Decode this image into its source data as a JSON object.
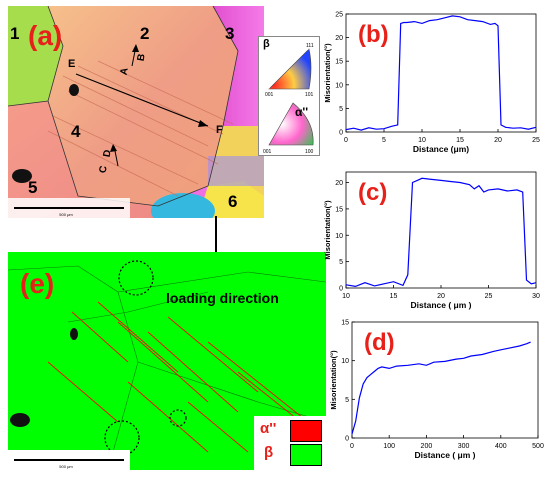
{
  "panels": {
    "a": {
      "label": "(a)",
      "grain_numbers": [
        "1",
        "2",
        "3",
        "4",
        "5",
        "6"
      ],
      "line_labels": {
        "E": "E",
        "F": "F",
        "A": "A",
        "B": "B",
        "C": "C",
        "D": "D"
      },
      "legend_beta": "β",
      "legend_alpha": "α''",
      "ipf_beta_ticks": [
        "001",
        "101",
        "111"
      ],
      "ipf_alpha_ticks": [
        "001",
        "100"
      ],
      "scalebar_label": "500 μm"
    },
    "e": {
      "label": "(e)",
      "annotation": "loading direction",
      "legend": [
        {
          "symbol": "α''",
          "color": "#ff0000"
        },
        {
          "symbol": "β",
          "color": "#00ff00"
        }
      ],
      "scalebar_label": "500 μm"
    }
  },
  "colors": {
    "beta_phase": "#00ff00",
    "alpha_phase": "#ff0000",
    "plot_line": "#0000ff",
    "panel_label": "#e8201a"
  },
  "chart_data": [
    {
      "id": "b",
      "label": "(b)",
      "type": "line",
      "xlabel": "Distance",
      "xunit": "(μm)",
      "ylabel": "Misorientation(°)",
      "xlim": [
        0,
        25
      ],
      "ylim": [
        0,
        25
      ],
      "xticks": [
        "0",
        "5",
        "10",
        "15",
        "20",
        "25"
      ],
      "yticks": [
        "0",
        "5",
        "10",
        "15",
        "20",
        "25"
      ],
      "x": [
        0,
        1,
        2,
        3,
        4,
        5,
        6,
        6.8,
        7.2,
        7.6,
        8,
        9,
        10,
        11,
        12,
        13,
        14,
        15,
        16,
        17,
        18,
        19,
        19.6,
        20,
        20.4,
        21,
        22,
        23,
        24,
        25
      ],
      "y": [
        0.5,
        0.8,
        0.4,
        0.9,
        0.6,
        0.7,
        1.2,
        1.5,
        23,
        23.2,
        23.2,
        23.4,
        23,
        23.6,
        23.8,
        24.2,
        24.6,
        24.4,
        23.8,
        23.6,
        23.4,
        22.8,
        23,
        22.5,
        1.5,
        1.0,
        0.8,
        0.9,
        0.6,
        1.0
      ]
    },
    {
      "id": "c",
      "label": "(c)",
      "type": "line",
      "xlabel": "Distance",
      "xunit": "( μm )",
      "ylabel": "Misorientation(°)",
      "xlim": [
        10,
        30
      ],
      "ylim": [
        0,
        22
      ],
      "xticks": [
        "10",
        "15",
        "20",
        "25",
        "30"
      ],
      "yticks": [
        "0",
        "5",
        "10",
        "15",
        "20"
      ],
      "x": [
        10,
        11,
        12,
        13,
        14,
        15,
        16,
        16.5,
        17,
        17.5,
        18,
        19,
        20,
        21,
        22,
        23,
        23.5,
        24,
        24.5,
        25,
        26,
        27,
        28,
        28.6,
        29,
        29.5,
        30
      ],
      "y": [
        0.6,
        0.3,
        1.0,
        0.4,
        0.8,
        1.2,
        0.5,
        2.5,
        20,
        20.4,
        20.8,
        20.6,
        20.4,
        20.2,
        20.0,
        19.6,
        18.8,
        19.4,
        18.2,
        18.6,
        18.8,
        18.4,
        18.6,
        18.2,
        1.5,
        0.8,
        1.0
      ]
    },
    {
      "id": "d",
      "label": "(d)",
      "type": "line",
      "xlabel": "Distance",
      "xunit": "( μm )",
      "ylabel": "Misorientation(°)",
      "xlim": [
        0,
        500
      ],
      "ylim": [
        0,
        15
      ],
      "xticks": [
        "0",
        "100",
        "200",
        "300",
        "400",
        "500"
      ],
      "yticks": [
        "0",
        "5",
        "10",
        "15"
      ],
      "x": [
        0,
        10,
        20,
        30,
        40,
        50,
        60,
        70,
        80,
        100,
        120,
        150,
        180,
        200,
        220,
        250,
        280,
        300,
        320,
        350,
        380,
        400,
        420,
        450,
        470,
        480
      ],
      "y": [
        0.5,
        2.2,
        5.2,
        7.0,
        7.8,
        8.2,
        8.6,
        9.0,
        9.2,
        9.0,
        9.3,
        9.4,
        9.6,
        9.4,
        9.8,
        9.9,
        10.2,
        10.3,
        10.6,
        10.8,
        11.2,
        11.4,
        11.6,
        11.9,
        12.2,
        12.4
      ]
    }
  ]
}
